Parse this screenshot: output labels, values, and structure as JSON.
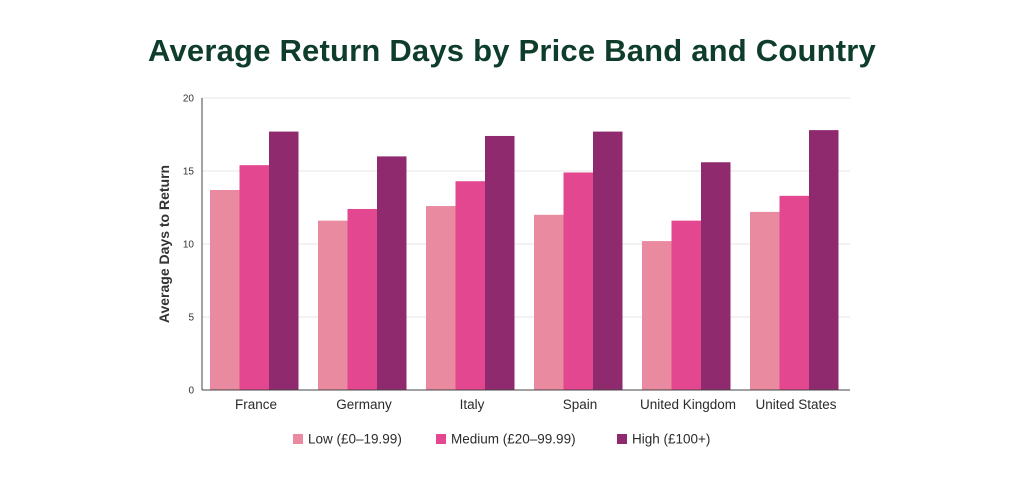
{
  "chart_data": {
    "type": "bar",
    "title": "Average Return Days by Price Band and Country",
    "xlabel": "",
    "ylabel": "Average Days to Return",
    "ylim": [
      0,
      20
    ],
    "yticks": [
      0,
      5,
      10,
      15,
      20
    ],
    "grid": true,
    "legend_position": "bottom",
    "categories": [
      "France",
      "Germany",
      "Italy",
      "Spain",
      "United Kingdom",
      "United States"
    ],
    "series": [
      {
        "name": "Low (£0–19.99)",
        "color": "#ea8aa1",
        "values": [
          13.7,
          11.6,
          12.6,
          12.0,
          10.2,
          12.2
        ]
      },
      {
        "name": "Medium (£20–99.99)",
        "color": "#e2478f",
        "values": [
          15.4,
          12.4,
          14.3,
          14.9,
          11.6,
          13.3
        ]
      },
      {
        "name": "High (£100+)",
        "color": "#902a6e",
        "values": [
          17.7,
          16.0,
          17.4,
          17.7,
          15.6,
          17.8
        ]
      }
    ]
  }
}
